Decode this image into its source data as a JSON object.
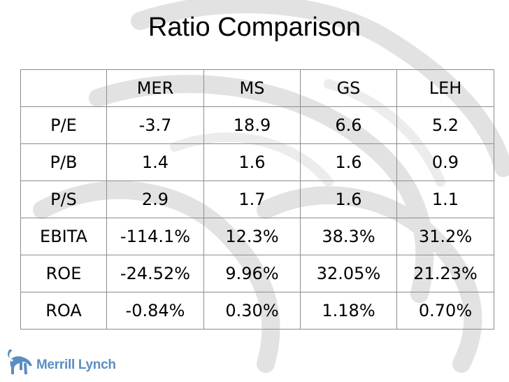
{
  "slide": {
    "title": "Ratio Comparison"
  },
  "table": {
    "header": [
      "",
      "MER",
      "MS",
      "GS",
      "LEH"
    ],
    "rows": [
      [
        "P/E",
        "-3.7",
        "18.9",
        "6.6",
        "5.2"
      ],
      [
        "P/B",
        "1.4",
        "1.6",
        "1.6",
        "0.9"
      ],
      [
        "P/S",
        "2.9",
        "1.7",
        "1.6",
        "1.1"
      ],
      [
        "EBITA",
        "-114.1%",
        "12.3%",
        "38.3%",
        "31.2%"
      ],
      [
        "ROE",
        "-24.52%",
        "9.96%",
        "32.05%",
        "21.23%"
      ],
      [
        "ROA",
        "-0.84%",
        "0.30%",
        "1.18%",
        "0.70%"
      ]
    ]
  },
  "logo": {
    "text": "Merrill Lynch",
    "icon": "bull-icon",
    "color": "#5a8ec2"
  },
  "background": {
    "icon": "bull-watermark-icon",
    "color": "#e4e4e4"
  }
}
